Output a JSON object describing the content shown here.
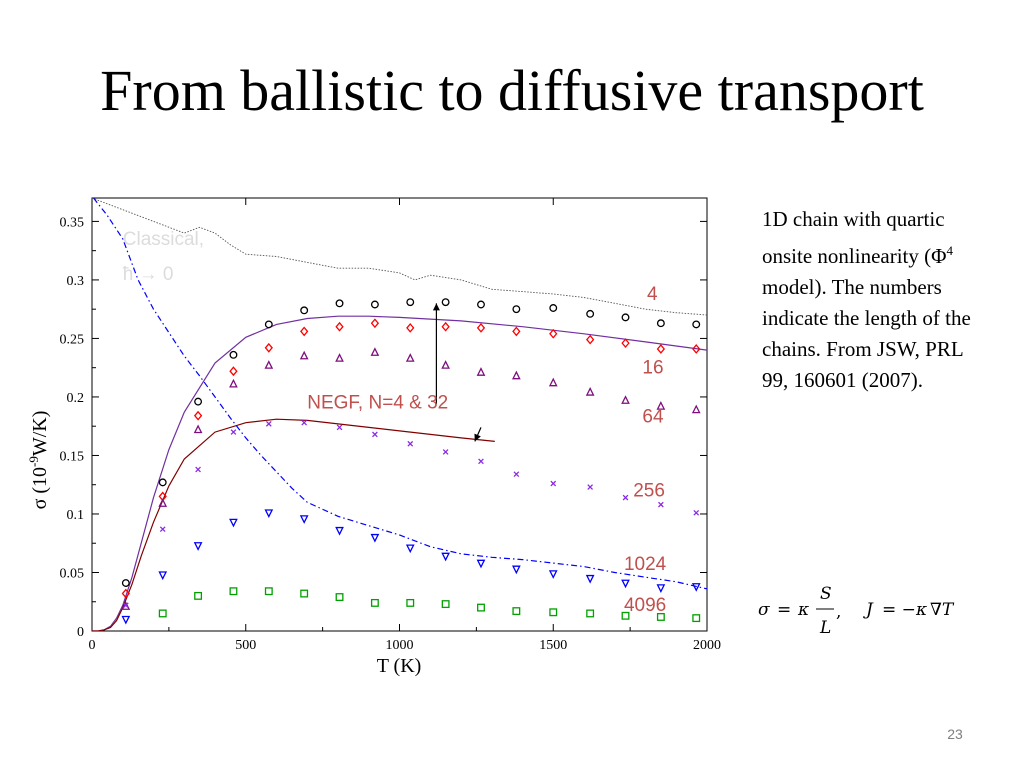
{
  "slide": {
    "title": "From ballistic to diffusive transport",
    "page_number": "23"
  },
  "side_text": {
    "before_symbol": "1D chain with quartic onsite nonlinearity (",
    "symbol": "Φ",
    "exponent": "4",
    "after_symbol": " model). The numbers indicate the length of the chains. From JSW, PRL 99, 160601 (2007)."
  },
  "formula": {
    "sigma": "σ",
    "equals": "=",
    "kappa": "κ",
    "numerator": "S",
    "denominator": "L",
    "comma": ",",
    "J": "J",
    "equals_minus": "= −",
    "kappa2": "κ",
    "nabla_T": "∇T"
  },
  "colors": {
    "n4": "#000000",
    "n16": "#ff0000",
    "n64": "#7f0f7e",
    "n256": "#8a2be2",
    "n1024": "#0000ff",
    "n4096": "#00a000",
    "negf_32": "#7030a0",
    "negf_4": "#800000",
    "classical": "#0000ff",
    "upper_dotted": "#555555",
    "annotation": "#c0504d"
  },
  "chart_data": {
    "type": "scatter",
    "xlabel": "T (K)",
    "ylabel_parts": {
      "symbol": "σ",
      "open": " (10",
      "exp": "-9",
      "unit": "W/K)"
    },
    "xlim": [
      0,
      2000
    ],
    "ylim": [
      0,
      0.37
    ],
    "x_ticks": [
      0,
      500,
      1000,
      1500,
      2000
    ],
    "y_ticks": [
      0,
      0.05,
      0.1,
      0.15,
      0.2,
      0.25,
      0.3,
      0.35
    ],
    "x_tick_labels": [
      "0",
      "500",
      "1000",
      "1500",
      "2000"
    ],
    "y_tick_labels": [
      "0",
      "0.05",
      "0.1",
      "0.15",
      "0.2",
      "0.25",
      "0.3",
      "0.35"
    ],
    "series": [
      {
        "name": "4",
        "marker": "circle",
        "color": "#000000",
        "x": [
          110,
          230,
          345,
          460,
          575,
          690,
          805,
          920,
          1035,
          1150,
          1265,
          1380,
          1500,
          1620,
          1735,
          1850,
          1965
        ],
        "y": [
          0.041,
          0.127,
          0.196,
          0.236,
          0.262,
          0.274,
          0.28,
          0.279,
          0.281,
          0.281,
          0.279,
          0.275,
          0.276,
          0.271,
          0.268,
          0.263,
          0.262
        ]
      },
      {
        "name": "16",
        "marker": "diamond",
        "color": "#ff0000",
        "x": [
          110,
          230,
          345,
          460,
          575,
          690,
          805,
          920,
          1035,
          1150,
          1265,
          1380,
          1500,
          1620,
          1735,
          1850,
          1965
        ],
        "y": [
          0.032,
          0.115,
          0.184,
          0.222,
          0.242,
          0.256,
          0.26,
          0.263,
          0.259,
          0.26,
          0.259,
          0.256,
          0.254,
          0.249,
          0.246,
          0.241,
          0.241
        ]
      },
      {
        "name": "64",
        "marker": "triangle-up",
        "color": "#7f0f7e",
        "x": [
          110,
          230,
          345,
          460,
          575,
          690,
          805,
          920,
          1035,
          1150,
          1265,
          1380,
          1500,
          1620,
          1735,
          1850,
          1965
        ],
        "y": [
          0.021,
          0.109,
          0.172,
          0.211,
          0.227,
          0.235,
          0.233,
          0.238,
          0.233,
          0.227,
          0.221,
          0.218,
          0.212,
          0.204,
          0.197,
          0.192,
          0.189
        ]
      },
      {
        "name": "256",
        "marker": "x",
        "color": "#8a2be2",
        "x": [
          110,
          230,
          345,
          460,
          575,
          690,
          805,
          920,
          1035,
          1150,
          1265,
          1380,
          1500,
          1620,
          1735,
          1850,
          1965
        ],
        "y": [
          0.022,
          0.087,
          0.138,
          0.17,
          0.177,
          0.178,
          0.174,
          0.168,
          0.16,
          0.153,
          0.145,
          0.134,
          0.126,
          0.123,
          0.114,
          0.108,
          0.101
        ]
      },
      {
        "name": "1024",
        "marker": "triangle-down",
        "color": "#0000ff",
        "x": [
          110,
          230,
          345,
          460,
          575,
          690,
          805,
          920,
          1035,
          1150,
          1265,
          1380,
          1500,
          1620,
          1735,
          1850,
          1965
        ],
        "y": [
          0.01,
          0.048,
          0.073,
          0.093,
          0.101,
          0.096,
          0.086,
          0.08,
          0.071,
          0.064,
          0.058,
          0.053,
          0.049,
          0.045,
          0.041,
          0.037,
          0.038
        ]
      },
      {
        "name": "4096",
        "marker": "square",
        "color": "#00a000",
        "x": [
          230,
          345,
          460,
          575,
          690,
          805,
          920,
          1035,
          1150,
          1265,
          1380,
          1500,
          1620,
          1735,
          1850,
          1965
        ],
        "y": [
          0.015,
          0.03,
          0.034,
          0.034,
          0.032,
          0.029,
          0.024,
          0.024,
          0.023,
          0.02,
          0.017,
          0.016,
          0.015,
          0.013,
          0.012,
          0.011
        ]
      }
    ],
    "curves": [
      {
        "name": "NEGF N=32",
        "color": "#7030a0",
        "x": [
          0,
          20,
          40,
          60,
          80,
          100,
          130,
          160,
          200,
          250,
          300,
          400,
          500,
          600,
          700,
          800,
          900,
          1000,
          1200,
          1400,
          1600,
          1800,
          2000
        ],
        "y": [
          0,
          0,
          0.001,
          0.004,
          0.011,
          0.022,
          0.046,
          0.075,
          0.114,
          0.155,
          0.187,
          0.229,
          0.251,
          0.262,
          0.267,
          0.269,
          0.269,
          0.268,
          0.265,
          0.26,
          0.254,
          0.247,
          0.24
        ]
      },
      {
        "name": "NEGF N=4",
        "color": "#800000",
        "x": [
          0,
          20,
          40,
          60,
          80,
          100,
          130,
          160,
          200,
          250,
          300,
          400,
          500,
          600,
          700,
          800,
          900,
          1000,
          1100,
          1200,
          1310
        ],
        "y": [
          0,
          0,
          0.001,
          0.003,
          0.009,
          0.02,
          0.04,
          0.064,
          0.093,
          0.124,
          0.147,
          0.17,
          0.178,
          0.181,
          0.18,
          0.177,
          0.174,
          0.171,
          0.168,
          0.165,
          0.162
        ]
      },
      {
        "name": "Classical",
        "color": "#0000ff",
        "style": "dashdot",
        "x": [
          5,
          50,
          100,
          150,
          200,
          250,
          300,
          350,
          400,
          450,
          500,
          550,
          600,
          650,
          700,
          800,
          900,
          1000,
          1100,
          1200,
          1300,
          1400,
          1500,
          1600,
          1700,
          1800,
          1900,
          2000
        ],
        "y": [
          0.37,
          0.355,
          0.335,
          0.3,
          0.275,
          0.255,
          0.235,
          0.218,
          0.2,
          0.182,
          0.165,
          0.15,
          0.136,
          0.122,
          0.11,
          0.098,
          0.09,
          0.082,
          0.072,
          0.066,
          0.063,
          0.061,
          0.058,
          0.055,
          0.05,
          0.046,
          0.042,
          0.036
        ]
      },
      {
        "name": "Upper dotted",
        "color": "#555555",
        "style": "dotted",
        "x": [
          0,
          100,
          200,
          300,
          350,
          400,
          450,
          500,
          600,
          700,
          800,
          900,
          1000,
          1050,
          1100,
          1200,
          1300,
          1400,
          1500,
          1600,
          1700,
          1800,
          1900,
          2000
        ],
        "y": [
          0.37,
          0.36,
          0.35,
          0.34,
          0.345,
          0.34,
          0.33,
          0.322,
          0.32,
          0.315,
          0.31,
          0.31,
          0.306,
          0.3,
          0.304,
          0.3,
          0.292,
          0.29,
          0.288,
          0.285,
          0.28,
          0.275,
          0.272,
          0.27
        ]
      }
    ],
    "annotations": [
      {
        "label": "Classical,",
        "color": "#dcdcdc",
        "x": 100,
        "y": 0.33
      },
      {
        "label": "ħ → 0",
        "color": "#dcdcdc",
        "x": 100,
        "y": 0.3
      },
      {
        "label": "NEGF, N=4 & 32",
        "color": "#c0504d",
        "x": 700,
        "y": 0.19
      },
      {
        "label": "4",
        "color": "#c0504d",
        "x": 1805,
        "y": 0.283
      },
      {
        "label": "16",
        "color": "#c0504d",
        "x": 1790,
        "y": 0.22
      },
      {
        "label": "64",
        "color": "#c0504d",
        "x": 1790,
        "y": 0.178
      },
      {
        "label": "256",
        "color": "#c0504d",
        "x": 1760,
        "y": 0.115
      },
      {
        "label": "1024",
        "color": "#c0504d",
        "x": 1730,
        "y": 0.052
      },
      {
        "label": "4096",
        "color": "#c0504d",
        "x": 1730,
        "y": 0.017
      }
    ],
    "arrows": [
      {
        "from_x": 1120,
        "from_y": 0.194,
        "to_x": 1120,
        "to_y": 0.28,
        "color": "#000000"
      },
      {
        "from_x": 1265,
        "from_y": 0.174,
        "to_x": 1245,
        "to_y": 0.162,
        "color": "#000000"
      }
    ]
  }
}
